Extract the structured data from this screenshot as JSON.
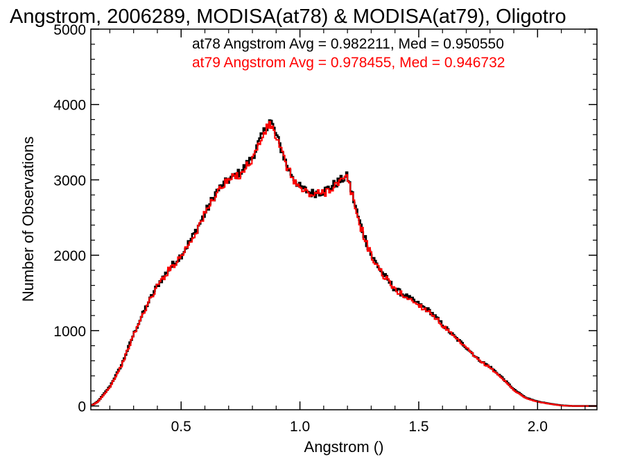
{
  "chart_data": {
    "type": "line",
    "title": "Angstrom, 2006289, MODISA(at78) & MODISA(at79), Oligotro",
    "xlabel": "Angstrom ()",
    "ylabel": "Number of Observations",
    "xlim": [
      0.12,
      2.25
    ],
    "ylim": [
      -50,
      5000
    ],
    "x_ticks": [
      0.5,
      1.0,
      1.5,
      2.0
    ],
    "x_tick_labels": [
      "0.5",
      "1.0",
      "1.5",
      "2.0"
    ],
    "y_ticks": [
      0,
      1000,
      2000,
      3000,
      4000,
      5000
    ],
    "y_tick_labels": [
      "0",
      "1000",
      "2000",
      "3000",
      "4000",
      "5000"
    ],
    "grid": false,
    "annotations": [
      {
        "text": "at78 Angstrom Avg = 0.982211, Med = 0.950550",
        "color": "#000000"
      },
      {
        "text": "at79 Angstrom Avg = 0.978455, Med = 0.946732",
        "color": "#ff0000"
      }
    ],
    "x": [
      0.12,
      0.15,
      0.2,
      0.25,
      0.3,
      0.35,
      0.4,
      0.45,
      0.5,
      0.55,
      0.6,
      0.65,
      0.7,
      0.75,
      0.8,
      0.85,
      0.875,
      0.9,
      0.95,
      1.0,
      1.05,
      1.1,
      1.15,
      1.2,
      1.25,
      1.3,
      1.35,
      1.4,
      1.45,
      1.5,
      1.55,
      1.6,
      1.65,
      1.7,
      1.75,
      1.8,
      1.85,
      1.9,
      1.95,
      2.0,
      2.05,
      2.1,
      2.15,
      2.2,
      2.25
    ],
    "series": [
      {
        "name": "at78",
        "color": "#000000",
        "values": [
          0,
          60,
          260,
          550,
          950,
          1300,
          1600,
          1820,
          2000,
          2250,
          2550,
          2850,
          3000,
          3100,
          3300,
          3650,
          3800,
          3600,
          3150,
          2900,
          2820,
          2850,
          2950,
          3050,
          2450,
          2000,
          1750,
          1550,
          1450,
          1350,
          1250,
          1080,
          920,
          780,
          620,
          520,
          380,
          220,
          110,
          60,
          30,
          8,
          0,
          0,
          0
        ]
      },
      {
        "name": "at79",
        "color": "#ff0000",
        "values": [
          0,
          55,
          250,
          540,
          940,
          1290,
          1590,
          1810,
          1990,
          2240,
          2540,
          2840,
          2990,
          3080,
          3280,
          3620,
          3750,
          3570,
          3130,
          2880,
          2800,
          2830,
          2930,
          3030,
          2430,
          1990,
          1740,
          1540,
          1440,
          1340,
          1240,
          1070,
          910,
          770,
          610,
          510,
          370,
          210,
          105,
          55,
          28,
          6,
          0,
          0,
          0
        ]
      }
    ]
  }
}
